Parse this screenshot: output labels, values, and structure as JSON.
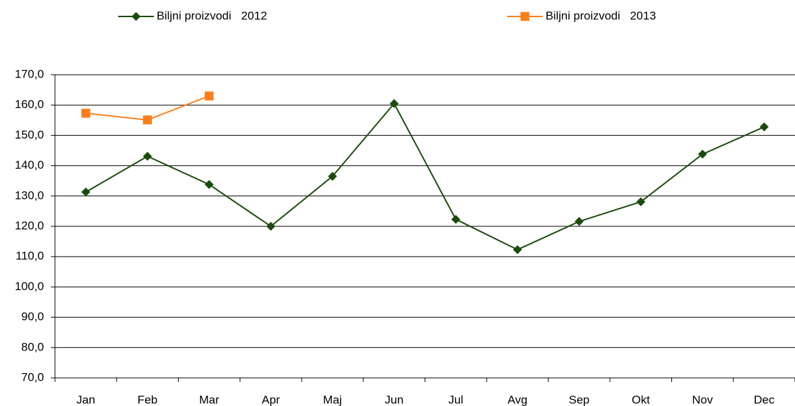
{
  "chart_data": {
    "type": "line",
    "categories": [
      "Jan",
      "Feb",
      "Mar",
      "Apr",
      "Maj",
      "Jun",
      "Jul",
      "Avg",
      "Sep",
      "Okt",
      "Nov",
      "Dec"
    ],
    "series": [
      {
        "name": "Biljni proizvodi   2012",
        "color": "#1c4a0c",
        "marker": "diamond",
        "values": [
          131.3,
          143.1,
          133.8,
          120.0,
          136.5,
          160.5,
          122.3,
          112.3,
          121.6,
          128.1,
          143.8,
          152.8
        ]
      },
      {
        "name": "Biljni proizvodi   2013",
        "color": "#f7801e",
        "marker": "square",
        "values": [
          157.3,
          155.1,
          163.0,
          null,
          null,
          null,
          null,
          null,
          null,
          null,
          null,
          null
        ]
      }
    ],
    "ylim": [
      70,
      170
    ],
    "yticks": [
      {
        "value": 70,
        "label": "70,0"
      },
      {
        "value": 80,
        "label": "80,0"
      },
      {
        "value": 90,
        "label": "90,0"
      },
      {
        "value": 100,
        "label": "100,0"
      },
      {
        "value": 110,
        "label": "110,0"
      },
      {
        "value": 120,
        "label": "120,0"
      },
      {
        "value": 130,
        "label": "130,0"
      },
      {
        "value": 140,
        "label": "140,0"
      },
      {
        "value": 150,
        "label": "150,0"
      },
      {
        "value": 160,
        "label": "160,0"
      },
      {
        "value": 170,
        "label": "170,0"
      }
    ],
    "grid": true
  }
}
